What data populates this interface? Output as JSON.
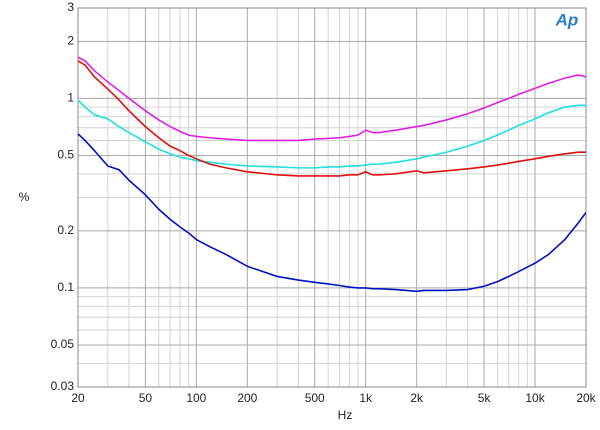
{
  "chart_data": {
    "type": "line",
    "xlabel": "Hz",
    "ylabel": "%",
    "logo": "Ap",
    "log_x": true,
    "log_y": true,
    "grid": true,
    "x": [
      20,
      22,
      25,
      30,
      35,
      40,
      50,
      60,
      70,
      80,
      90,
      100,
      120,
      150,
      200,
      300,
      400,
      500,
      600,
      700,
      800,
      900,
      1000,
      1100,
      1200,
      1500,
      2000,
      2200,
      3000,
      4000,
      5000,
      6000,
      7000,
      8000,
      10000,
      12000,
      15000,
      18000,
      20000
    ],
    "series": [
      {
        "color": "#e020e0",
        "values": [
          1.65,
          1.58,
          1.4,
          1.22,
          1.1,
          1.0,
          0.86,
          0.77,
          0.71,
          0.67,
          0.64,
          0.63,
          0.62,
          0.61,
          0.6,
          0.6,
          0.6,
          0.61,
          0.615,
          0.62,
          0.63,
          0.64,
          0.68,
          0.66,
          0.66,
          0.68,
          0.71,
          0.72,
          0.77,
          0.83,
          0.89,
          0.95,
          1.0,
          1.05,
          1.13,
          1.2,
          1.28,
          1.33,
          1.3
        ]
      },
      {
        "color": "#20e0e0",
        "values": [
          0.98,
          0.9,
          0.82,
          0.78,
          0.71,
          0.66,
          0.59,
          0.54,
          0.51,
          0.49,
          0.48,
          0.47,
          0.46,
          0.45,
          0.44,
          0.435,
          0.43,
          0.43,
          0.435,
          0.435,
          0.44,
          0.44,
          0.445,
          0.45,
          0.45,
          0.46,
          0.48,
          0.49,
          0.52,
          0.56,
          0.6,
          0.64,
          0.68,
          0.72,
          0.78,
          0.84,
          0.9,
          0.92,
          0.92
        ]
      },
      {
        "color": "#e01010",
        "values": [
          1.58,
          1.5,
          1.3,
          1.12,
          0.98,
          0.86,
          0.71,
          0.62,
          0.56,
          0.53,
          0.5,
          0.48,
          0.45,
          0.43,
          0.41,
          0.395,
          0.39,
          0.39,
          0.39,
          0.39,
          0.395,
          0.395,
          0.41,
          0.395,
          0.395,
          0.4,
          0.415,
          0.405,
          0.415,
          0.425,
          0.435,
          0.445,
          0.455,
          0.465,
          0.48,
          0.495,
          0.51,
          0.52,
          0.52
        ]
      },
      {
        "color": "#0010c0",
        "values": [
          0.65,
          0.6,
          0.53,
          0.44,
          0.42,
          0.37,
          0.31,
          0.26,
          0.23,
          0.21,
          0.195,
          0.18,
          0.165,
          0.15,
          0.13,
          0.115,
          0.11,
          0.107,
          0.105,
          0.103,
          0.101,
          0.1,
          0.1,
          0.099,
          0.099,
          0.098,
          0.096,
          0.097,
          0.097,
          0.098,
          0.102,
          0.108,
          0.115,
          0.122,
          0.135,
          0.15,
          0.18,
          0.22,
          0.25
        ]
      }
    ],
    "xlim": [
      20,
      20000
    ],
    "xticks": [
      20,
      50,
      100,
      200,
      500,
      {
        "value": 1000,
        "label": "1k"
      },
      {
        "value": 2000,
        "label": "2k"
      },
      {
        "value": 5000,
        "label": "5k"
      },
      {
        "value": 10000,
        "label": "10k"
      },
      {
        "value": 20000,
        "label": "20k"
      }
    ],
    "xminorticks": [
      30,
      40,
      60,
      70,
      80,
      90,
      300,
      400,
      600,
      700,
      800,
      900,
      3000,
      4000,
      6000,
      7000,
      8000,
      9000
    ],
    "ylim": [
      0.03,
      3
    ],
    "yticks": [
      0.03,
      0.05,
      0.1,
      0.2,
      0.5,
      1,
      2,
      3
    ],
    "yminorticks": [
      0.04,
      0.06,
      0.07,
      0.08,
      0.09,
      0.3,
      0.4,
      0.6,
      0.7,
      0.8,
      0.9
    ]
  }
}
